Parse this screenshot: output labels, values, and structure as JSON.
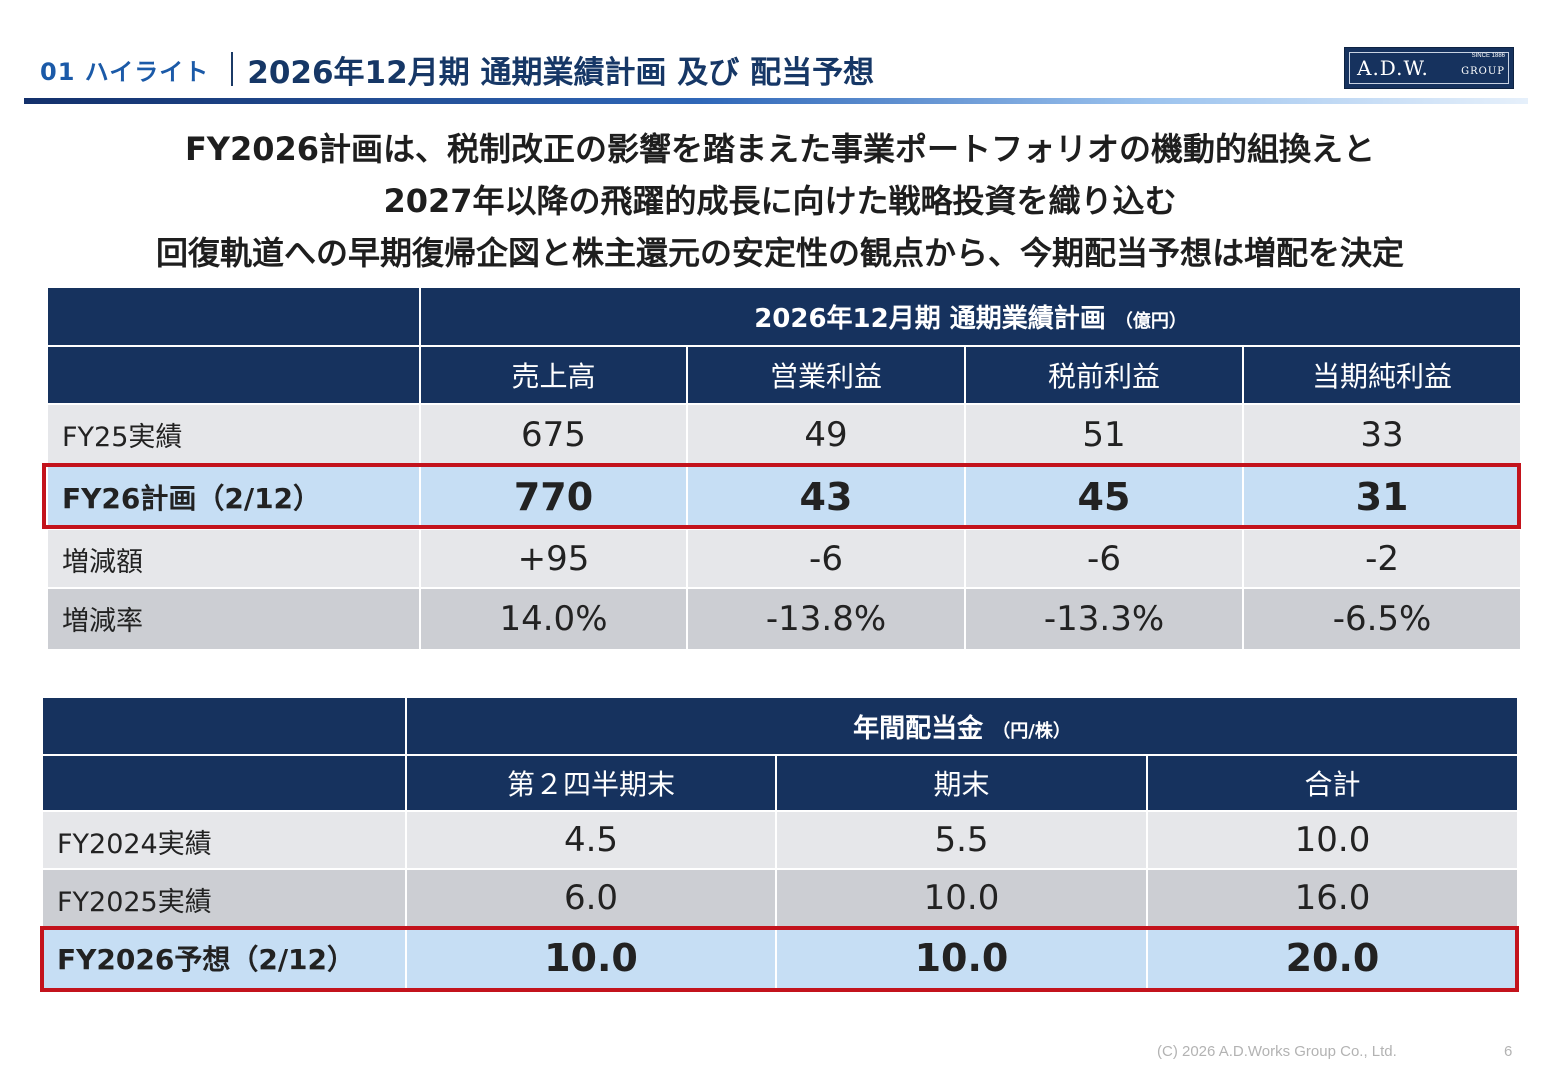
{
  "header": {
    "section": "01 ハイライト",
    "title": "2026年12月期 通期業績計画 及び 配当予想",
    "logo": {
      "main": "A.D.W.",
      "since": "SINCE 1886",
      "group": "GROUP"
    }
  },
  "message": [
    "FY2026計画は、税制改正の影響を踏まえた事業ポートフォリオの機動的組換えと",
    "2027年以降の飛躍的成長に向けた戦略投資を織り込む",
    "回復軌道への早期復帰企図と株主還元の安定性の観点から、今期配当予想は増配を決定"
  ],
  "earnings": {
    "title": "2026年12月期 通期業績計画",
    "unit": "（億円）",
    "columns": [
      "売上高",
      "営業利益",
      "税前利益",
      "当期純利益"
    ],
    "rows": [
      {
        "label": "FY25実績",
        "values": [
          "675",
          "49",
          "51",
          "33"
        ]
      },
      {
        "label": "FY26計画（2/12）",
        "values": [
          "770",
          "43",
          "45",
          "31"
        ]
      },
      {
        "label": "増減額",
        "values": [
          "+95",
          "-6",
          "-6",
          "-2"
        ]
      },
      {
        "label": "増減率",
        "values": [
          "14.0%",
          "-13.8%",
          "-13.3%",
          "-6.5%"
        ]
      }
    ]
  },
  "dividend": {
    "title": "年間配当金",
    "unit": "（円/株）",
    "columns": [
      "第２四半期末",
      "期末",
      "合計"
    ],
    "rows": [
      {
        "label": "FY2024実績",
        "values": [
          "4.5",
          "5.5",
          "10.0"
        ]
      },
      {
        "label": "FY2025実績",
        "values": [
          "6.0",
          "10.0",
          "16.0"
        ]
      },
      {
        "label": "FY2026予想（2/12）",
        "values": [
          "10.0",
          "10.0",
          "20.0"
        ]
      }
    ]
  },
  "footer": {
    "copyright": "(C) 2026  A.D.Works Group Co., Ltd.",
    "page": "6"
  },
  "colors": {
    "navy": "#16325e",
    "highlight": "#c6def4",
    "red_frame": "#c3131c"
  }
}
